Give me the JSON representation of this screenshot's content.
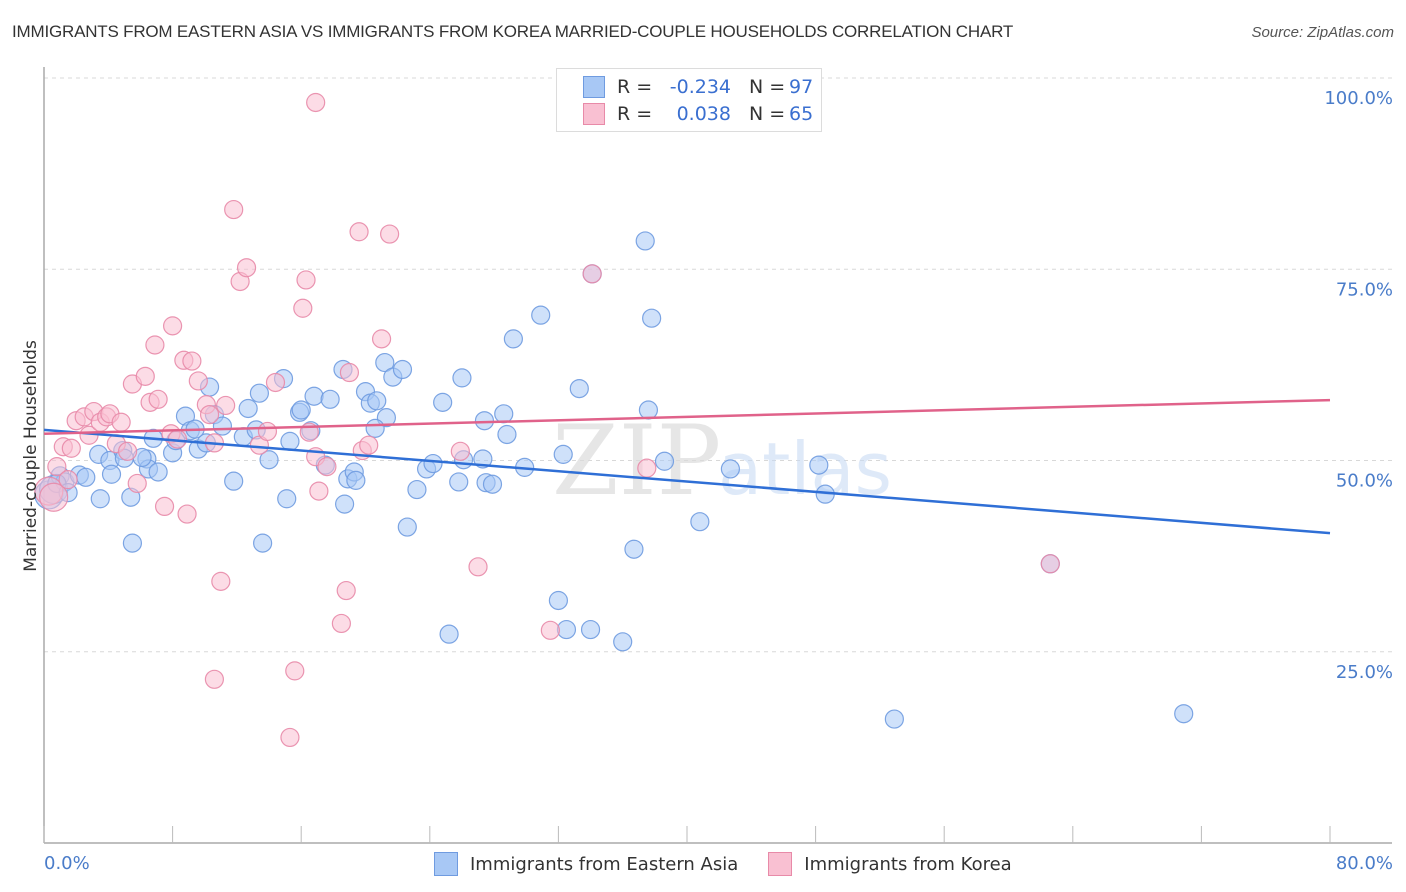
{
  "header": {
    "title": "IMMIGRANTS FROM EASTERN ASIA VS IMMIGRANTS FROM KOREA MARRIED-COUPLE HOUSEHOLDS CORRELATION CHART",
    "source": "Source: ZipAtlas.com"
  },
  "stats": [
    {
      "r_label": "R =",
      "r_value": "-0.234",
      "n_label": "N =",
      "n_value": "97",
      "color": "#a8c8f5",
      "border": "#6f9be0"
    },
    {
      "r_label": "R =",
      "r_value": "0.038",
      "n_label": "N =",
      "n_value": "65",
      "color": "#f9c0d2",
      "border": "#e88aa8"
    }
  ],
  "legend": [
    {
      "label": "Immigrants from Eastern Asia",
      "color": "#a8c8f5",
      "border": "#6f9be0"
    },
    {
      "label": "Immigrants from Korea",
      "color": "#f9c0d2",
      "border": "#e88aa8"
    }
  ],
  "watermark": {
    "zip": "ZIP",
    "atlas": "atlas"
  },
  "chart_data": {
    "type": "scatter",
    "title": "IMMIGRANTS FROM EASTERN ASIA VS IMMIGRANTS FROM KOREA MARRIED-COUPLE HOUSEHOLDS CORRELATION CHART",
    "xlabel": "",
    "ylabel": "Married-couple Households",
    "xlim": [
      0,
      80
    ],
    "ylim": [
      0,
      100
    ],
    "x_tick_labels": [
      "0.0%",
      "80.0%"
    ],
    "y_ticks": [
      25,
      50,
      75,
      100
    ],
    "y_tick_labels": [
      "25.0%",
      "50.0%",
      "75.0%",
      "100.0%"
    ],
    "grid": true,
    "legend_position": "bottom-center",
    "series": [
      {
        "name": "Immigrants from Eastern Asia",
        "color": "#6f9be0",
        "fill": "#a8c8f5",
        "trend": {
          "x0": 0,
          "y0": 54.0,
          "x1": 80,
          "y1": 40.5,
          "color": "#2f6fd6"
        },
        "points": [
          [
            0.3,
            45.5
          ],
          [
            0.6,
            46.2
          ],
          [
            1.0,
            48.0
          ],
          [
            1.3,
            47.2
          ],
          [
            2.2,
            48.1
          ],
          [
            3.4,
            50.8
          ],
          [
            3.5,
            45.0
          ],
          [
            4.1,
            50.0
          ],
          [
            4.2,
            48.2
          ],
          [
            4.9,
            51.3
          ],
          [
            5.0,
            50.3
          ],
          [
            5.4,
            45.2
          ],
          [
            5.5,
            39.2
          ],
          [
            6.4,
            50.2
          ],
          [
            6.5,
            48.9
          ],
          [
            6.8,
            52.9
          ],
          [
            7.1,
            48.5
          ],
          [
            8.0,
            51.0
          ],
          [
            8.2,
            52.6
          ],
          [
            8.8,
            55.8
          ],
          [
            9.1,
            53.9
          ],
          [
            9.6,
            51.5
          ],
          [
            10.1,
            52.3
          ],
          [
            10.3,
            59.6
          ],
          [
            10.6,
            56.0
          ],
          [
            11.1,
            54.5
          ],
          [
            11.8,
            47.3
          ],
          [
            12.4,
            53.1
          ],
          [
            12.7,
            56.8
          ],
          [
            13.2,
            54.0
          ],
          [
            13.4,
            58.8
          ],
          [
            13.6,
            39.2
          ],
          [
            14.0,
            50.1
          ],
          [
            14.9,
            60.7
          ],
          [
            15.1,
            45.0
          ],
          [
            15.3,
            52.5
          ],
          [
            15.9,
            56.3
          ],
          [
            16.0,
            56.6
          ],
          [
            16.6,
            53.9
          ],
          [
            16.8,
            58.4
          ],
          [
            17.5,
            49.4
          ],
          [
            17.8,
            58.0
          ],
          [
            18.6,
            61.9
          ],
          [
            18.7,
            44.3
          ],
          [
            18.9,
            47.6
          ],
          [
            19.3,
            48.5
          ],
          [
            19.4,
            47.4
          ],
          [
            20.0,
            59.0
          ],
          [
            20.3,
            57.5
          ],
          [
            20.7,
            57.8
          ],
          [
            21.2,
            62.8
          ],
          [
            21.3,
            55.6
          ],
          [
            21.7,
            60.9
          ],
          [
            22.3,
            61.9
          ],
          [
            22.6,
            41.3
          ],
          [
            23.2,
            46.2
          ],
          [
            23.8,
            48.9
          ],
          [
            24.2,
            49.6
          ],
          [
            24.8,
            57.6
          ],
          [
            25.2,
            27.3
          ],
          [
            25.8,
            47.2
          ],
          [
            26.0,
            60.8
          ],
          [
            27.3,
            50.2
          ],
          [
            27.4,
            55.2
          ],
          [
            27.5,
            47.1
          ],
          [
            27.9,
            46.9
          ],
          [
            28.6,
            56.1
          ],
          [
            28.8,
            53.4
          ],
          [
            29.2,
            65.9
          ],
          [
            29.9,
            49.1
          ],
          [
            30.9,
            69.0
          ],
          [
            32.0,
            31.7
          ],
          [
            32.3,
            50.8
          ],
          [
            32.5,
            27.9
          ],
          [
            33.3,
            59.4
          ],
          [
            34.0,
            27.9
          ],
          [
            34.1,
            74.4
          ],
          [
            36.0,
            26.3
          ],
          [
            36.7,
            38.4
          ],
          [
            37.4,
            78.7
          ],
          [
            37.6,
            56.6
          ],
          [
            37.8,
            68.6
          ],
          [
            38.6,
            49.9
          ],
          [
            40.8,
            42.0
          ],
          [
            42.7,
            48.9
          ],
          [
            48.2,
            49.4
          ],
          [
            48.6,
            45.6
          ],
          [
            52.9,
            16.2
          ],
          [
            62.6,
            36.5
          ],
          [
            70.9,
            16.9
          ],
          [
            0.8,
            47.0
          ],
          [
            1.5,
            45.8
          ],
          [
            2.6,
            47.8
          ],
          [
            6.1,
            50.4
          ],
          [
            9.4,
            54.1
          ],
          [
            20.6,
            54.2
          ],
          [
            26.1,
            50.1
          ]
        ]
      },
      {
        "name": "Immigrants from Korea",
        "color": "#e88aa8",
        "fill": "#f9c0d2",
        "trend": {
          "x0": 0,
          "y0": 53.5,
          "x1": 80,
          "y1": 57.9,
          "color": "#e0628a"
        },
        "points": [
          [
            0.3,
            46.0
          ],
          [
            0.6,
            45.2
          ],
          [
            0.8,
            49.2
          ],
          [
            1.2,
            51.8
          ],
          [
            1.5,
            47.5
          ],
          [
            1.7,
            51.6
          ],
          [
            2.0,
            55.2
          ],
          [
            2.5,
            55.7
          ],
          [
            2.8,
            53.3
          ],
          [
            3.1,
            56.4
          ],
          [
            3.5,
            55.0
          ],
          [
            3.9,
            55.7
          ],
          [
            4.1,
            56.1
          ],
          [
            4.5,
            52.2
          ],
          [
            4.8,
            55.0
          ],
          [
            5.2,
            51.2
          ],
          [
            5.5,
            60.0
          ],
          [
            5.8,
            47.0
          ],
          [
            6.3,
            61.0
          ],
          [
            6.6,
            57.6
          ],
          [
            6.9,
            65.1
          ],
          [
            7.1,
            58.0
          ],
          [
            7.5,
            44.0
          ],
          [
            7.9,
            53.5
          ],
          [
            8.0,
            67.6
          ],
          [
            8.3,
            52.8
          ],
          [
            8.7,
            63.1
          ],
          [
            8.9,
            43.0
          ],
          [
            9.2,
            63.0
          ],
          [
            9.6,
            60.4
          ],
          [
            10.1,
            57.3
          ],
          [
            10.3,
            56.0
          ],
          [
            10.6,
            52.3
          ],
          [
            11.0,
            34.2
          ],
          [
            11.3,
            57.2
          ],
          [
            11.8,
            82.8
          ],
          [
            12.2,
            73.4
          ],
          [
            12.6,
            75.2
          ],
          [
            13.4,
            52.0
          ],
          [
            13.9,
            53.8
          ],
          [
            14.4,
            60.2
          ],
          [
            15.3,
            13.8
          ],
          [
            15.6,
            22.5
          ],
          [
            16.1,
            69.9
          ],
          [
            16.3,
            73.6
          ],
          [
            16.5,
            53.7
          ],
          [
            16.9,
            50.5
          ],
          [
            17.1,
            46.0
          ],
          [
            17.6,
            49.2
          ],
          [
            18.5,
            28.7
          ],
          [
            18.8,
            33.0
          ],
          [
            19.0,
            61.5
          ],
          [
            19.6,
            79.9
          ],
          [
            19.8,
            51.3
          ],
          [
            20.2,
            52.0
          ],
          [
            21.0,
            65.9
          ],
          [
            21.5,
            79.6
          ],
          [
            25.9,
            51.2
          ],
          [
            27.0,
            36.1
          ],
          [
            31.5,
            27.8
          ],
          [
            34.1,
            74.4
          ],
          [
            37.5,
            49.0
          ],
          [
            62.6,
            36.5
          ],
          [
            10.6,
            21.4
          ],
          [
            16.9,
            96.8
          ]
        ]
      }
    ]
  }
}
